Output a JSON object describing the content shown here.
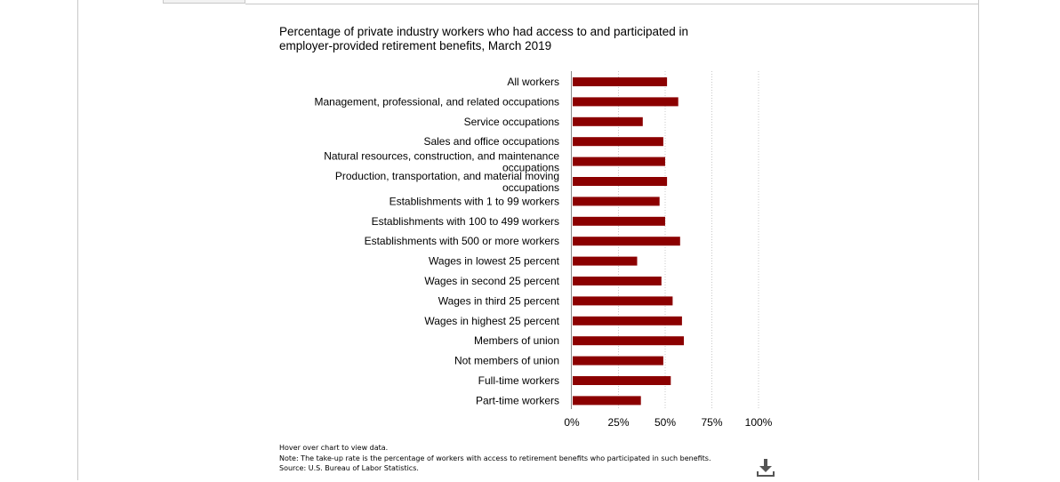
{
  "chart_data": {
    "type": "bar",
    "orientation": "horizontal",
    "title": "Percentage of private industry workers who had access to and participated in employer-provided retirement benefits, March 2019",
    "categories": [
      "All workers",
      "Management, professional, and related occupations",
      "Service occupations",
      "Sales and office occupations",
      "Natural resources, construction, and maintenance occupations",
      "Production, transportation, and material moving occupations",
      "Establishments with 1 to 99 workers",
      "Establishments with 100 to 499 workers",
      "Establishments with 500 or more workers",
      "Wages in lowest 25 percent",
      "Wages in second 25 percent",
      "Wages in third 25 percent",
      "Wages in highest 25 percent",
      "Members of union",
      "Not members of union",
      "Full-time workers",
      "Part-time workers"
    ],
    "values": [
      51,
      57,
      38,
      49,
      50,
      51,
      47,
      50,
      58,
      35,
      48,
      54,
      59,
      60,
      49,
      53,
      37
    ],
    "xlim": [
      0,
      100
    ],
    "x_ticks": [
      "0%",
      "25%",
      "50%",
      "75%",
      "100%"
    ],
    "grid": "vertical dotted",
    "bar_color": "#8b0000"
  },
  "notes": {
    "hover": "Hover over chart to view data.",
    "note": "Note: The take-up rate is the percentage of workers with access to retirement benefits who participated in such benefits.",
    "source": "Source: U.S. Bureau of Labor Statistics."
  },
  "icons": {
    "download": "download-icon"
  }
}
